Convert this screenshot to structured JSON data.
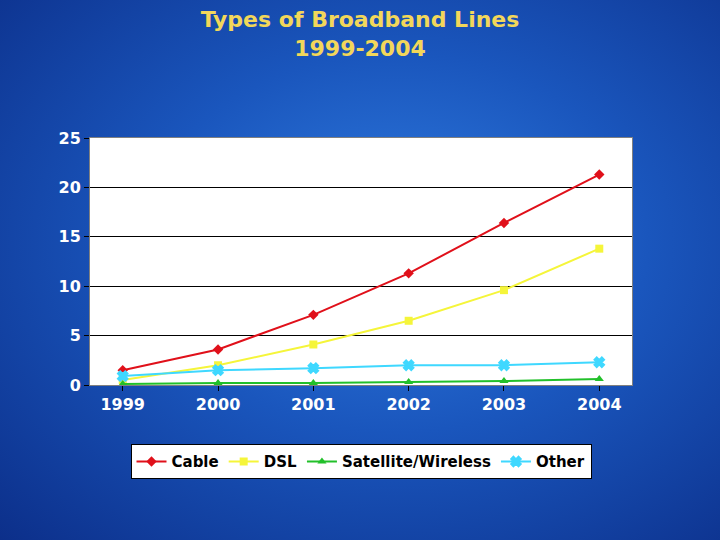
{
  "chart_data": {
    "type": "line",
    "title": "Types of Broadband Lines\n1999-2004",
    "categories": [
      "1999",
      "2000",
      "2001",
      "2002",
      "2003",
      "2004"
    ],
    "series": [
      {
        "name": "Cable",
        "color": "#e0101a",
        "marker": "diamond",
        "values": [
          1.5,
          3.6,
          7.1,
          11.3,
          16.4,
          21.3
        ]
      },
      {
        "name": "DSL",
        "color": "#f5f53a",
        "marker": "square",
        "values": [
          0.5,
          2.0,
          4.1,
          6.5,
          9.6,
          13.8
        ]
      },
      {
        "name": "Satellite/Wireless",
        "color": "#22c02a",
        "marker": "triangle-up",
        "values": [
          0.1,
          0.2,
          0.2,
          0.3,
          0.4,
          0.6
        ]
      },
      {
        "name": "Other",
        "color": "#3fd8ff",
        "marker": "x",
        "values": [
          0.9,
          1.5,
          1.7,
          2.0,
          2.0,
          2.3
        ]
      }
    ],
    "ylim": [
      0,
      25
    ],
    "yticks": [
      0,
      5,
      10,
      15,
      20,
      25
    ],
    "grid": true,
    "legend": "bottom"
  }
}
